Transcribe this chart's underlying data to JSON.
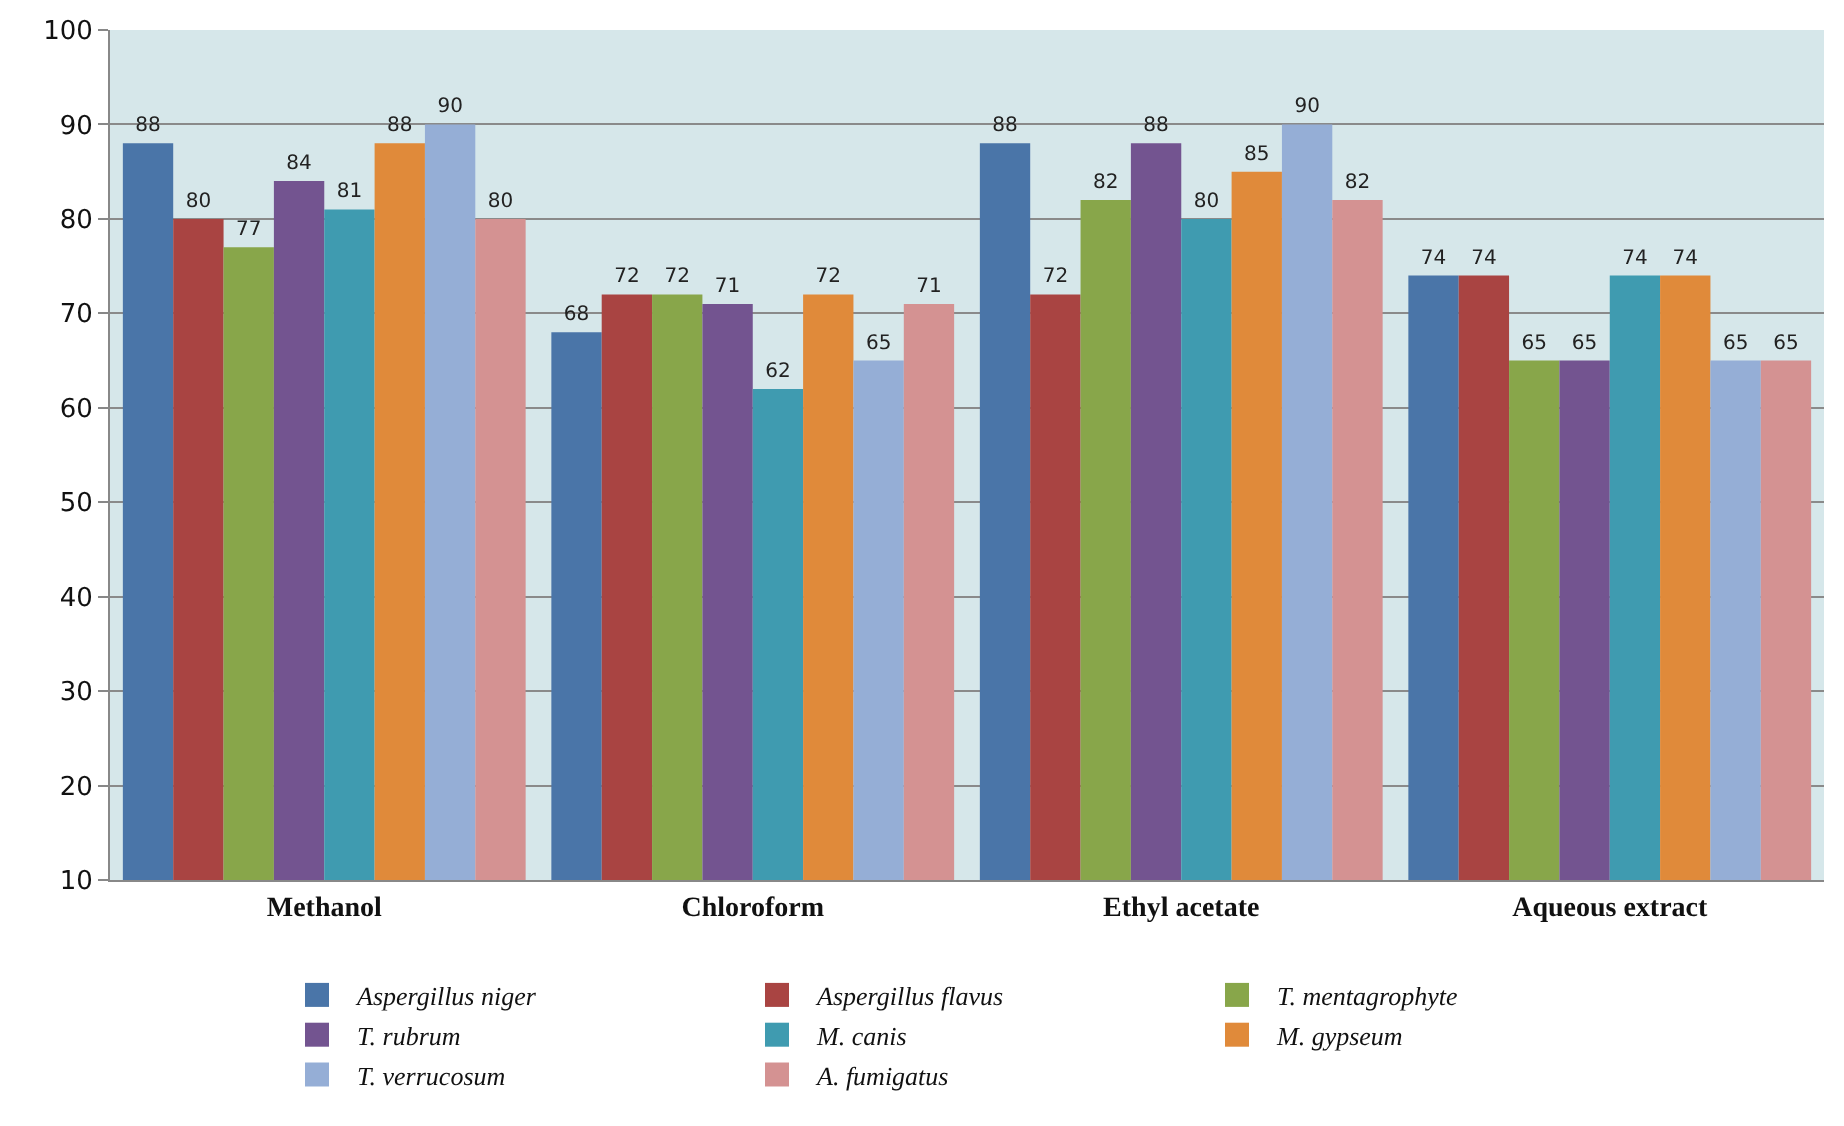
{
  "chart_data": {
    "type": "bar",
    "categories": [
      "Methanol",
      "Chloroform",
      "Ethyl acetate",
      "Aqueous extract"
    ],
    "series": [
      {
        "name": "Aspergillus niger",
        "color": "#4a75a8",
        "values": [
          88,
          68,
          88,
          74
        ]
      },
      {
        "name": "Aspergillus flavus",
        "color": "#a94442",
        "values": [
          80,
          72,
          72,
          74
        ]
      },
      {
        "name": "T. mentagrophyte",
        "color": "#88a64a",
        "values": [
          77,
          72,
          82,
          65
        ]
      },
      {
        "name": "T. rubrum",
        "color": "#735490",
        "values": [
          84,
          71,
          88,
          65
        ]
      },
      {
        "name": "M. canis",
        "color": "#3f9bb0",
        "values": [
          81,
          62,
          80,
          74
        ]
      },
      {
        "name": "M. gypseum",
        "color": "#e08a3a",
        "values": [
          88,
          72,
          85,
          74
        ]
      },
      {
        "name": "T. verrucosum",
        "color": "#95aed6",
        "values": [
          90,
          65,
          90,
          65
        ]
      },
      {
        "name": "A. fumigatus",
        "color": "#d49292",
        "values": [
          80,
          71,
          82,
          65
        ]
      }
    ],
    "ylim": [
      10,
      100
    ],
    "yticks": [
      10,
      20,
      30,
      40,
      50,
      60,
      70,
      80,
      90,
      100
    ],
    "grid": "y",
    "legend": "bottom",
    "data_labels": true
  }
}
